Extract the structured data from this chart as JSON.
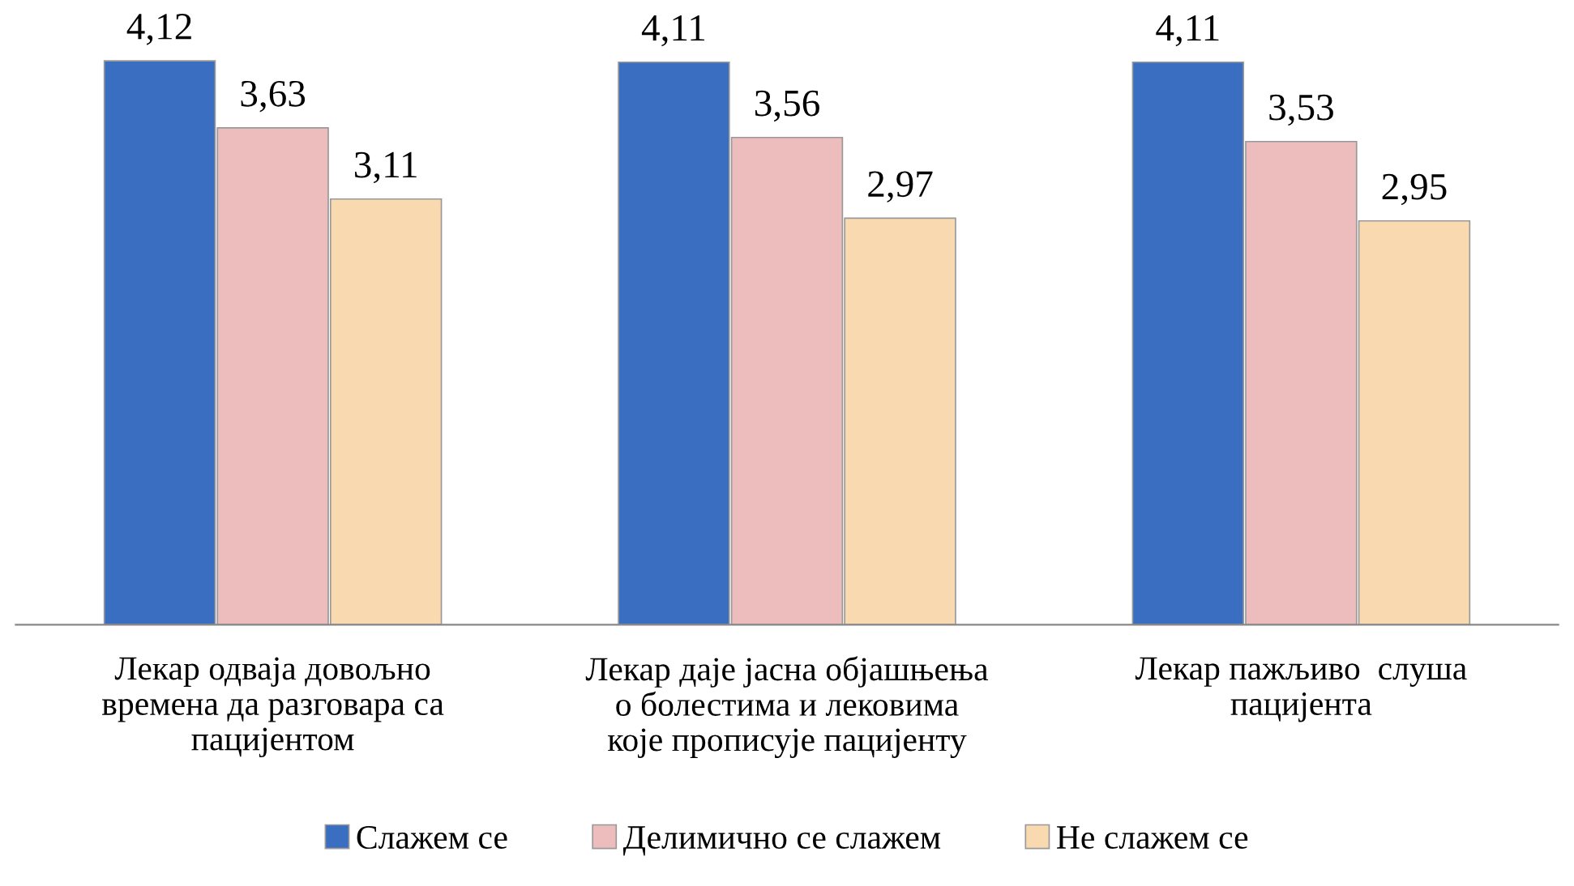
{
  "chart_data": {
    "type": "bar",
    "categories": [
      "Лекар одваја довољно\nвремена да разговара са\nпацијентом",
      "Лекар даје јасна објашњења\nо болестима и лековима\nкоје прописује пацијенту",
      "Лекар пажљиво  слуша\nпацијента"
    ],
    "series": [
      {
        "name": "Слажем се",
        "color": "#3a6ec0",
        "values": [
          4.12,
          4.11,
          4.11
        ],
        "value_labels": [
          "4,12",
          "4,11",
          "4,11"
        ]
      },
      {
        "name": "Делимично се слажем",
        "color": "#edbcbc",
        "values": [
          3.63,
          3.56,
          3.53
        ],
        "value_labels": [
          "3,63",
          "3,56",
          "3,53"
        ]
      },
      {
        "name": "Не слажем се",
        "color": "#f8d9b0",
        "values": [
          3.11,
          2.97,
          2.95
        ],
        "value_labels": [
          "3,11",
          "2,97",
          "2,95"
        ]
      }
    ],
    "tick_labels": "x",
    "legend": "bottom",
    "grid": false
  }
}
